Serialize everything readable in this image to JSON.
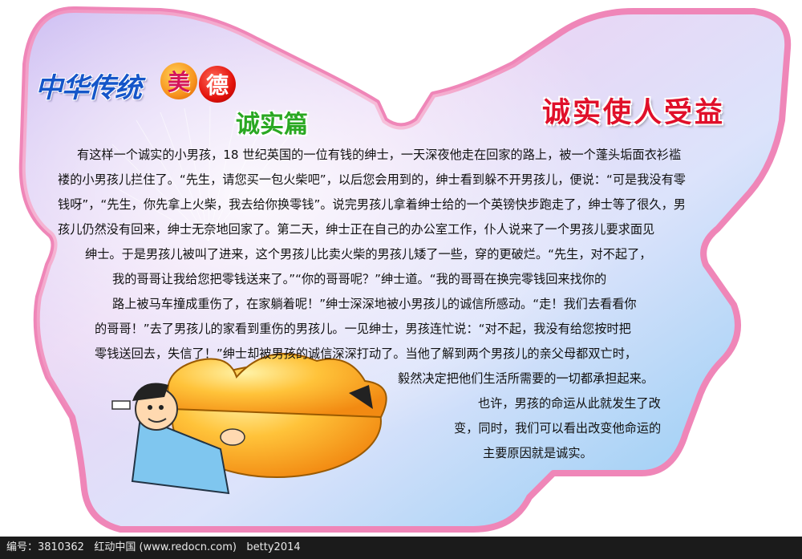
{
  "header": {
    "logo_text": "中华传统",
    "badge_1": "美",
    "badge_2": "德",
    "chapter_title": "诚实篇",
    "right_title": "诚实使人受益"
  },
  "story": {
    "lines": [
      "有这样一个诚实的小男孩，18 世纪英国的一位有钱的绅士，一天深夜他走在回家的路上，被一个蓬头垢面衣衫褴",
      "褛的小男孩儿拦住了。“先生，请您买一包火柴吧”，以后您会用到的，绅士看到躲不开男孩儿，便说：“可是我没有零",
      "钱呀”，“先生，你先拿上火柴，我去给你换零钱”。说完男孩儿拿着绅士给的一个英镑快步跑走了，绅士等了很久，男",
      "孩儿仍然没有回来，绅士无奈地回家了。第二天，绅士正在自己的办公室工作，仆人说来了一个男孩儿要求面见",
      "绅士。于是男孩儿被叫了进来，这个男孩儿比卖火柴的男孩儿矮了一些，穿的更破烂。“先生，对不起了，",
      "我的哥哥让我给您把零钱送来了。”“你的哥哥呢？”绅士道。“我的哥哥在换完零钱回来找你的",
      "路上被马车撞成重伤了，在家躺着呢！”绅士深深地被小男孩儿的诚信所感动。“走！我们去看看你",
      "的哥哥！”去了男孩儿的家看到重伤的男孩儿。一见绅士，男孩连忙说：“对不起，我没有给您按时把",
      "零钱送回去，失信了！”绅士却被男孩的诚信深深打动了。当他了解到两个男孩儿的亲父母都双亡时，",
      "毅然决定把他们生活所需要的一切都承担起来。",
      "也许，男孩的命运从此就发生了改",
      "变，同时，我们可以看出改变他命运的",
      "主要原因就是诚实。"
    ]
  },
  "footer": {
    "id_label": "编号：",
    "id_value": "3810362",
    "site": "红动中国 (www.redocn.com)",
    "author": "betty2014"
  },
  "colors": {
    "border_pink": "#ef86b8",
    "logo_blue": "#1556c9",
    "chapter_green": "#2aa822",
    "title_red": "#e0102a"
  }
}
